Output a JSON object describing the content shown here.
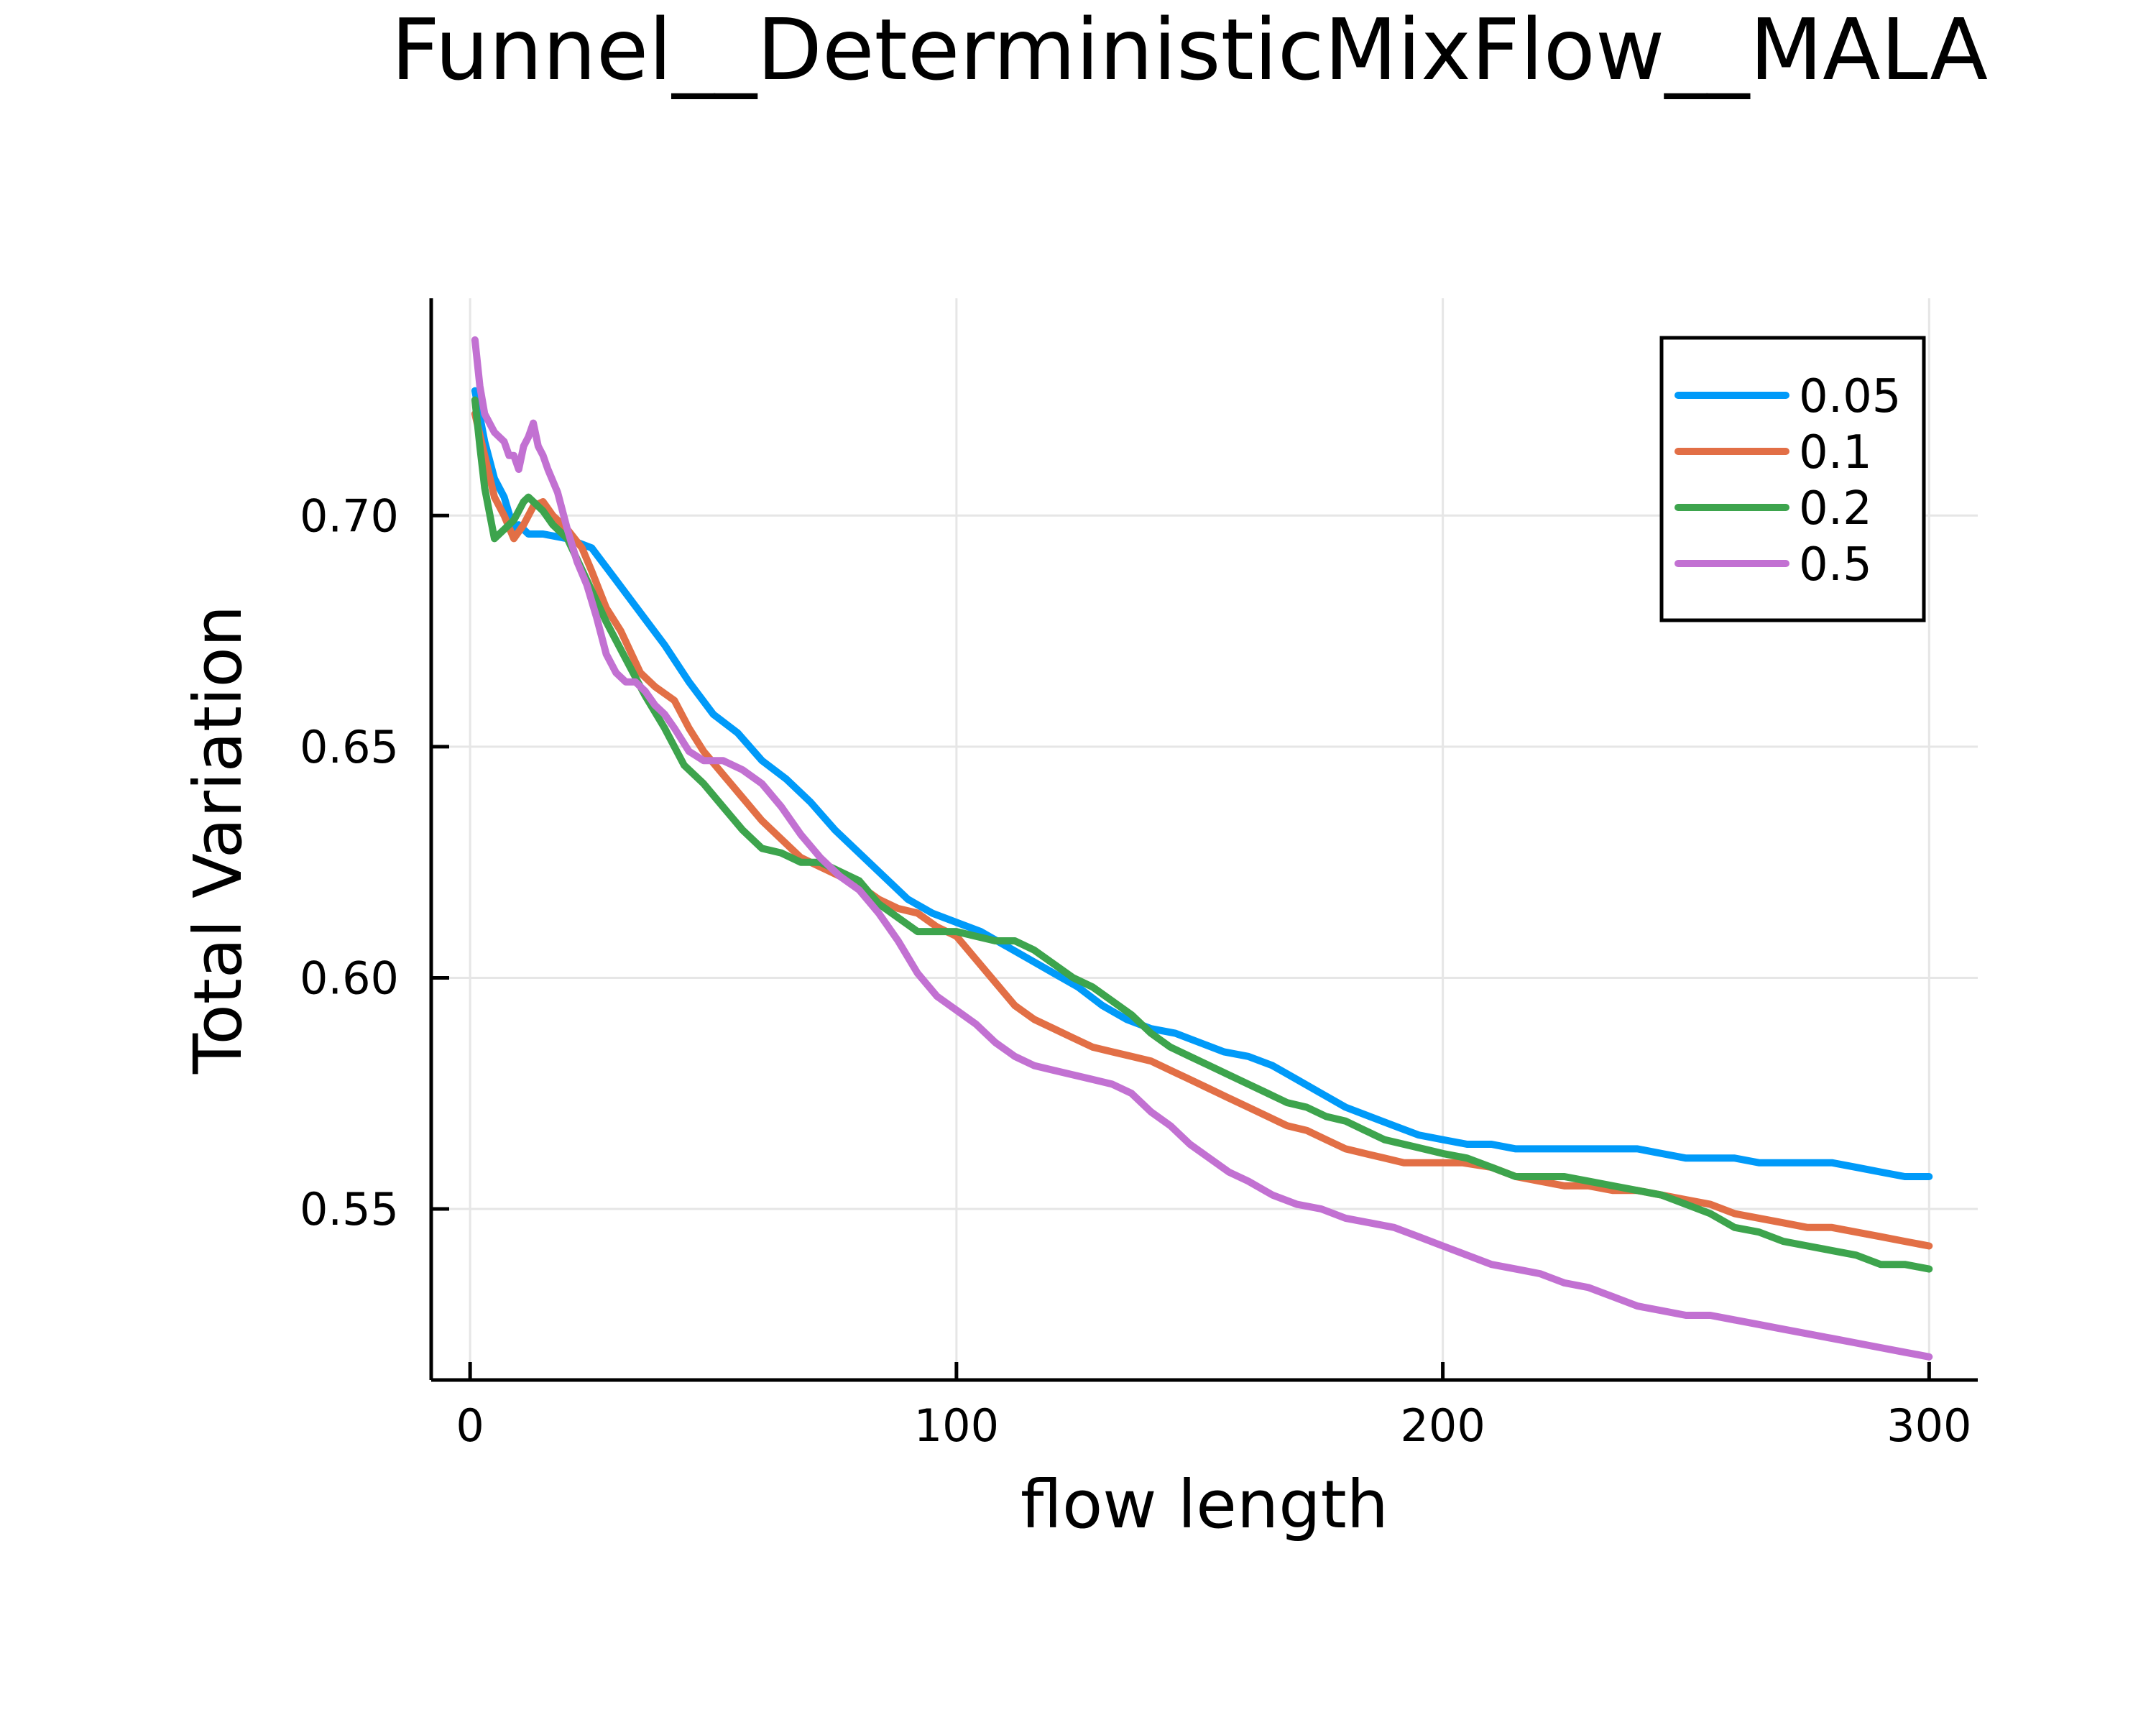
{
  "chart_data": {
    "type": "line",
    "title": "Funnel__DeterministicMixFlow__MALA",
    "xlabel": "flow length",
    "ylabel": "Total Variation",
    "xlim": [
      -8,
      310
    ],
    "ylim": [
      0.513,
      0.747
    ],
    "xticks": [
      0,
      100,
      200,
      300
    ],
    "xtick_labels": [
      "0",
      "100",
      "200",
      "300"
    ],
    "yticks": [
      0.55,
      0.6,
      0.65,
      0.7
    ],
    "ytick_labels": [
      "0.55",
      "0.60",
      "0.65",
      "0.70"
    ],
    "grid": true,
    "legend_position": "top-right",
    "series": [
      {
        "name": "0.05",
        "color": "#009af9",
        "x": [
          1,
          3,
          5,
          7,
          9,
          10,
          12,
          15,
          20,
          25,
          30,
          35,
          40,
          45,
          50,
          55,
          60,
          65,
          70,
          75,
          80,
          85,
          90,
          95,
          100,
          105,
          110,
          115,
          120,
          125,
          130,
          135,
          140,
          145,
          150,
          155,
          160,
          165,
          170,
          175,
          180,
          185,
          190,
          195,
          200,
          205,
          210,
          215,
          220,
          225,
          230,
          235,
          240,
          245,
          250,
          255,
          260,
          265,
          270,
          275,
          280,
          285,
          290,
          295,
          300
        ],
        "y": [
          0.727,
          0.716,
          0.708,
          0.704,
          0.697,
          0.698,
          0.696,
          0.696,
          0.695,
          0.693,
          0.686,
          0.679,
          0.672,
          0.664,
          0.657,
          0.653,
          0.647,
          0.643,
          0.638,
          0.632,
          0.627,
          0.622,
          0.617,
          0.614,
          0.612,
          0.61,
          0.607,
          0.604,
          0.601,
          0.598,
          0.594,
          0.591,
          0.589,
          0.588,
          0.586,
          0.584,
          0.583,
          0.581,
          0.578,
          0.575,
          0.572,
          0.57,
          0.568,
          0.566,
          0.565,
          0.564,
          0.564,
          0.563,
          0.563,
          0.563,
          0.563,
          0.563,
          0.563,
          0.562,
          0.561,
          0.561,
          0.561,
          0.56,
          0.56,
          0.56,
          0.56,
          0.559,
          0.558,
          0.557,
          0.557
        ]
      },
      {
        "name": "0.1",
        "color": "#e26f46",
        "x": [
          1,
          3,
          5,
          7,
          9,
          11,
          13,
          15,
          17,
          20,
          23,
          25,
          28,
          31,
          35,
          38,
          42,
          45,
          48,
          52,
          56,
          60,
          64,
          68,
          72,
          76,
          80,
          84,
          88,
          92,
          96,
          100,
          104,
          108,
          112,
          116,
          120,
          124,
          128,
          132,
          136,
          140,
          144,
          148,
          152,
          156,
          160,
          164,
          168,
          172,
          176,
          180,
          184,
          188,
          192,
          196,
          200,
          204,
          210,
          215,
          220,
          225,
          230,
          235,
          240,
          245,
          250,
          255,
          260,
          265,
          270,
          275,
          280,
          285,
          290,
          295,
          300
        ],
        "y": [
          0.722,
          0.713,
          0.704,
          0.7,
          0.695,
          0.698,
          0.702,
          0.703,
          0.7,
          0.697,
          0.693,
          0.688,
          0.68,
          0.675,
          0.666,
          0.663,
          0.66,
          0.654,
          0.649,
          0.644,
          0.639,
          0.634,
          0.63,
          0.626,
          0.624,
          0.622,
          0.62,
          0.617,
          0.615,
          0.614,
          0.611,
          0.609,
          0.604,
          0.599,
          0.594,
          0.591,
          0.589,
          0.587,
          0.585,
          0.584,
          0.583,
          0.582,
          0.58,
          0.578,
          0.576,
          0.574,
          0.572,
          0.57,
          0.568,
          0.567,
          0.565,
          0.563,
          0.562,
          0.561,
          0.56,
          0.56,
          0.56,
          0.56,
          0.559,
          0.557,
          0.556,
          0.555,
          0.555,
          0.554,
          0.554,
          0.553,
          0.552,
          0.551,
          0.549,
          0.548,
          0.547,
          0.546,
          0.546,
          0.545,
          0.544,
          0.543,
          0.542
        ]
      },
      {
        "name": "0.2",
        "color": "#3da44d",
        "x": [
          1,
          2,
          3,
          5,
          7,
          9,
          11,
          12,
          13,
          15,
          17,
          20,
          24,
          28,
          32,
          36,
          40,
          44,
          48,
          52,
          56,
          60,
          64,
          68,
          72,
          76,
          80,
          84,
          88,
          92,
          96,
          100,
          104,
          108,
          112,
          116,
          120,
          124,
          128,
          132,
          136,
          140,
          144,
          148,
          152,
          156,
          160,
          164,
          168,
          172,
          176,
          180,
          184,
          188,
          192,
          196,
          200,
          205,
          210,
          215,
          220,
          225,
          230,
          235,
          240,
          245,
          250,
          255,
          260,
          265,
          270,
          275,
          280,
          285,
          290,
          295,
          300
        ],
        "y": [
          0.725,
          0.715,
          0.706,
          0.695,
          0.697,
          0.699,
          0.703,
          0.704,
          0.703,
          0.701,
          0.698,
          0.695,
          0.686,
          0.677,
          0.669,
          0.661,
          0.654,
          0.646,
          0.642,
          0.637,
          0.632,
          0.628,
          0.627,
          0.625,
          0.625,
          0.623,
          0.621,
          0.616,
          0.613,
          0.61,
          0.61,
          0.61,
          0.609,
          0.608,
          0.608,
          0.606,
          0.603,
          0.6,
          0.598,
          0.595,
          0.592,
          0.588,
          0.585,
          0.583,
          0.581,
          0.579,
          0.577,
          0.575,
          0.573,
          0.572,
          0.57,
          0.569,
          0.567,
          0.565,
          0.564,
          0.563,
          0.562,
          0.561,
          0.559,
          0.557,
          0.557,
          0.557,
          0.556,
          0.555,
          0.554,
          0.553,
          0.551,
          0.549,
          0.546,
          0.545,
          0.543,
          0.542,
          0.541,
          0.54,
          0.538,
          0.538,
          0.537
        ]
      },
      {
        "name": "0.5",
        "color": "#c271d2",
        "x": [
          1,
          2,
          3,
          5,
          7,
          8,
          9,
          10,
          11,
          12,
          13,
          14,
          15,
          16,
          18,
          20,
          22,
          24,
          26,
          28,
          30,
          32,
          34,
          36,
          38,
          40,
          42,
          45,
          48,
          52,
          56,
          60,
          64,
          68,
          72,
          76,
          80,
          84,
          88,
          92,
          96,
          100,
          104,
          108,
          112,
          116,
          120,
          124,
          128,
          132,
          136,
          140,
          144,
          148,
          152,
          156,
          160,
          165,
          170,
          175,
          180,
          185,
          190,
          195,
          200,
          205,
          210,
          215,
          220,
          225,
          230,
          235,
          240,
          245,
          250,
          255,
          260,
          265,
          270,
          275,
          280,
          285,
          290,
          295,
          300
        ],
        "y": [
          0.738,
          0.728,
          0.722,
          0.718,
          0.716,
          0.713,
          0.713,
          0.71,
          0.715,
          0.717,
          0.72,
          0.715,
          0.713,
          0.71,
          0.705,
          0.697,
          0.69,
          0.685,
          0.678,
          0.67,
          0.666,
          0.664,
          0.664,
          0.662,
          0.659,
          0.657,
          0.654,
          0.649,
          0.647,
          0.647,
          0.645,
          0.642,
          0.637,
          0.631,
          0.626,
          0.622,
          0.619,
          0.614,
          0.608,
          0.601,
          0.596,
          0.593,
          0.59,
          0.586,
          0.583,
          0.581,
          0.58,
          0.579,
          0.578,
          0.577,
          0.575,
          0.571,
          0.568,
          0.564,
          0.561,
          0.558,
          0.556,
          0.553,
          0.551,
          0.55,
          0.548,
          0.547,
          0.546,
          0.544,
          0.542,
          0.54,
          0.538,
          0.537,
          0.536,
          0.534,
          0.533,
          0.531,
          0.529,
          0.528,
          0.527,
          0.527,
          0.526,
          0.525,
          0.524,
          0.523,
          0.522,
          0.521,
          0.52,
          0.519,
          0.518
        ]
      }
    ]
  }
}
